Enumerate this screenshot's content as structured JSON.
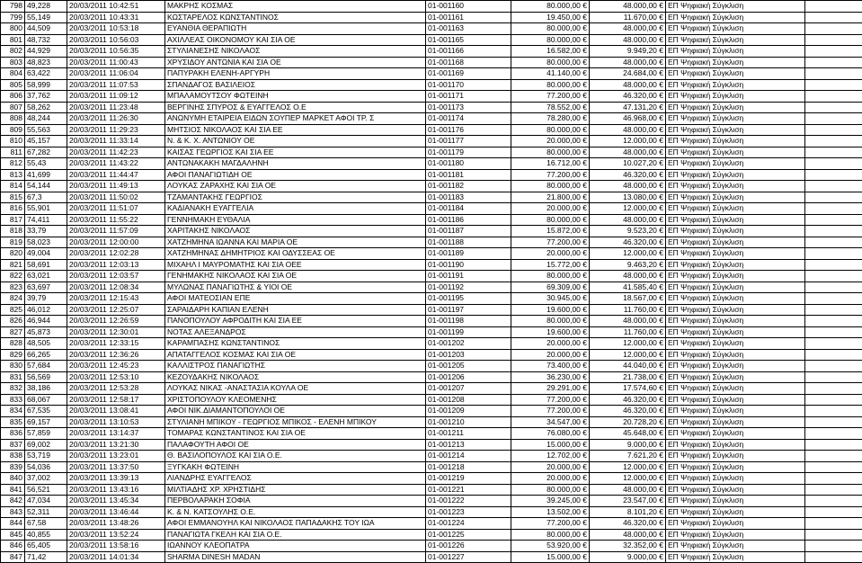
{
  "table": {
    "columns": [
      "idx",
      "num",
      "date",
      "name",
      "code",
      "amt1",
      "amt2",
      "cat",
      "extra"
    ],
    "col_classes": [
      "col-idx",
      "col-num",
      "col-date",
      "col-name",
      "col-code",
      "col-amt1",
      "col-amt2",
      "col-cat",
      "col-extra"
    ],
    "rows": [
      [
        "798",
        "49,228",
        "20/03/2011 10:42:51",
        "ΜΑΚΡΗΣ ΚΟΣΜΑΣ",
        "01-001160",
        "80.000,00 €",
        "48.000,00 €",
        "ΕΠ Ψηφιακή Σύγκλιση",
        ""
      ],
      [
        "799",
        "55,149",
        "20/03/2011 10:43:31",
        "ΚΩΣΤΑΡΕΛΟΣ ΚΩΝΣΤΑΝΤΙΝΟΣ",
        "01-001161",
        "19.450,00 €",
        "11.670,00 €",
        "ΕΠ Ψηφιακή Σύγκλιση",
        ""
      ],
      [
        "800",
        "44,509",
        "20/03/2011 10:53:18",
        "ΕΥΑΝΘΙΑ ΘΕΡΑΠΙΩΤΗ",
        "01-001163",
        "80.000,00 €",
        "48.000,00 €",
        "ΕΠ Ψηφιακή Σύγκλιση",
        ""
      ],
      [
        "801",
        "48,732",
        "20/03/2011 10:56:03",
        "ΑΧΙΛΛΕΑΣ ΟΙΚΟΝΟΜΟΥ ΚΑΙ ΣΙΑ ΟΕ",
        "01-001165",
        "80.000,00 €",
        "48.000,00 €",
        "ΕΠ Ψηφιακή Σύγκλιση",
        ""
      ],
      [
        "802",
        "44,929",
        "20/03/2011 10:56:35",
        "ΣΤΥΛΙΑΝΕΣΗΣ ΝΙΚΟΛΑΟΣ",
        "01-001166",
        "16.582,00 €",
        "9.949,20 €",
        "ΕΠ Ψηφιακή Σύγκλιση",
        ""
      ],
      [
        "803",
        "48,823",
        "20/03/2011 11:00:43",
        "ΧΡΥΣΙΔΟΥ ΑΝΤΩΝΙΑ ΚΑΙ ΣΙΑ ΟΕ",
        "01-001168",
        "80.000,00 €",
        "48.000,00 €",
        "ΕΠ Ψηφιακή Σύγκλιση",
        ""
      ],
      [
        "804",
        "63,422",
        "20/03/2011 11:06:04",
        "ΠΑΠΥΡΑΚΗ ΕΛΕΝΗ-ΑΡΓΥΡΗ",
        "01-001169",
        "41.140,00 €",
        "24.684,00 €",
        "ΕΠ Ψηφιακή Σύγκλιση",
        ""
      ],
      [
        "805",
        "58,999",
        "20/03/2011 11:07:53",
        "ΣΠΑΝΔΑΓΟΣ ΒΑΣΙΛΕΙΟΣ",
        "01-001170",
        "80.000,00 €",
        "48.000,00 €",
        "ΕΠ Ψηφιακή Σύγκλιση",
        ""
      ],
      [
        "806",
        "37,762",
        "20/03/2011 11:09:12",
        "ΜΠΑΛΑΜΟΥΤΣΟΥ ΦΩΤΕΙΝΗ",
        "01-001171",
        "77.200,00 €",
        "46.320,00 €",
        "ΕΠ Ψηφιακή Σύγκλιση",
        ""
      ],
      [
        "807",
        "58,262",
        "20/03/2011 11:23:48",
        "ΒΕΡΓΙΝΗΣ ΣΠΥΡΟΣ & ΕΥΑΓΓΕΛΟΣ Ο.Ε",
        "01-001173",
        "78.552,00 €",
        "47.131,20 €",
        "ΕΠ Ψηφιακή Σύγκλιση",
        ""
      ],
      [
        "808",
        "48,244",
        "20/03/2011 11:26:30",
        "ΑΝΩΝΥΜΗ ΕΤΑΙΡΕΙΑ ΕΙΔΩΝ ΣΟΥΠΕΡ ΜΑΡΚΕΤ ΑΦΟΙ ΤΡ. Σ",
        "01-001174",
        "78.280,00 €",
        "46.968,00 €",
        "ΕΠ Ψηφιακή Σύγκλιση",
        ""
      ],
      [
        "809",
        "55,563",
        "20/03/2011 11:29:23",
        "ΜΗΤΣΙΟΣ ΝΙΚΟΛΑΟΣ ΚΑΙ ΣΙΑ ΕΕ",
        "01-001176",
        "80.000,00 €",
        "48.000,00 €",
        "ΕΠ Ψηφιακή Σύγκλιση",
        ""
      ],
      [
        "810",
        "45,157",
        "20/03/2011 11:33:14",
        "Ν. & Κ. Χ. ΑΝΤΩΝΙΟΥ ΟΕ",
        "01-001177",
        "20.000,00 €",
        "12.000,00 €",
        "ΕΠ Ψηφιακή Σύγκλιση",
        ""
      ],
      [
        "811",
        "67,282",
        "20/03/2011 11:42:23",
        "ΚΑΙΣΑΣ ΓΕΩΡΓΙΟΣ ΚΑΙ ΣΙΑ ΕΕ",
        "01-001179",
        "80.000,00 €",
        "48.000,00 €",
        "ΕΠ Ψηφιακή Σύγκλιση",
        ""
      ],
      [
        "812",
        "55,43",
        "20/03/2011 11:43:22",
        "ΑΝΤΩΝΑΚΑΚΗ ΜΑΓΔΑΛΗΝΗ",
        "01-001180",
        "16.712,00 €",
        "10.027,20 €",
        "ΕΠ Ψηφιακή Σύγκλιση",
        ""
      ],
      [
        "813",
        "41,699",
        "20/03/2011 11:44:47",
        "ΑΦΟΙ ΠΑΝΑΓΙΩΤΙΔΗ ΟΕ",
        "01-001181",
        "77.200,00 €",
        "46.320,00 €",
        "ΕΠ Ψηφιακή Σύγκλιση",
        ""
      ],
      [
        "814",
        "54,144",
        "20/03/2011 11:49:13",
        "ΛΟΥΚΑΣ ΖΑΡΑΧΗΣ ΚΑΙ ΣΙΑ ΟΕ",
        "01-001182",
        "80.000,00 €",
        "48.000,00 €",
        "ΕΠ Ψηφιακή Σύγκλιση",
        ""
      ],
      [
        "815",
        "67,3",
        "20/03/2011 11:50:02",
        "ΤΖΑΜΑΝΤΑΚΗΣ ΓΕΩΡΓΙΟΣ",
        "01-001183",
        "21.800,00 €",
        "13.080,00 €",
        "ΕΠ Ψηφιακή Σύγκλιση",
        ""
      ],
      [
        "816",
        "55,901",
        "20/03/2011 11:51:07",
        "ΚΑΔΙΑΝΑΚΗ ΕΥΑΓΓΕΛΙΑ",
        "01-001184",
        "20.000,00 €",
        "12.000,00 €",
        "ΕΠ Ψηφιακή Σύγκλιση",
        ""
      ],
      [
        "817",
        "74,411",
        "20/03/2011 11:55:22",
        "ΓΕΝΝΗΜΑΚΗ ΕΥΘΑΛΙΑ",
        "01-001186",
        "80.000,00 €",
        "48.000,00 €",
        "ΕΠ Ψηφιακή Σύγκλιση",
        ""
      ],
      [
        "818",
        "33,79",
        "20/03/2011 11:57:09",
        "ΧΑΡΙΤΑΚΗΣ ΝΙΚΟΛΑΟΣ",
        "01-001187",
        "15.872,00 €",
        "9.523,20 €",
        "ΕΠ Ψηφιακή Σύγκλιση",
        ""
      ],
      [
        "819",
        "58,023",
        "20/03/2011 12:00:00",
        "ΧΑΤΖΗΜΗΝΑ ΙΩΑΝΝΑ ΚΑΙ ΜΑΡΙΑ ΟΕ",
        "01-001188",
        "77.200,00 €",
        "46.320,00 €",
        "ΕΠ Ψηφιακή Σύγκλιση",
        ""
      ],
      [
        "820",
        "49,004",
        "20/03/2011 12:02:28",
        "ΧΑΤΖΗΜΗΝΑΣ ΔΗΜΗΤΡΙΟΣ ΚΑΙ ΟΔΥΣΣΕΑΣ  ΟΕ",
        "01-001189",
        "20.000,00 €",
        "12.000,00 €",
        "ΕΠ Ψηφιακή Σύγκλιση",
        ""
      ],
      [
        "821",
        "58,691",
        "20/03/2011 12:03:13",
        "ΜΙΧΑΗΛ Ι ΜΑΥΡΟΜΑΤΗΣ ΚΑΙ ΣΙΑ ΟΕΕ",
        "01-001190",
        "15.772,00 €",
        "9.463,20 €",
        "ΕΠ Ψηφιακή Σύγκλιση",
        ""
      ],
      [
        "822",
        "63,021",
        "20/03/2011 12:03:57",
        "ΓΕΝΗΜΑΚΗΣ ΝΙΚΟΛΑΟΣ ΚΑΙ ΣΙΑ ΟΕ",
        "01-001191",
        "80.000,00 €",
        "48.000,00 €",
        "ΕΠ Ψηφιακή Σύγκλιση",
        ""
      ],
      [
        "823",
        "63,697",
        "20/03/2011 12:08:34",
        "ΜΥΛΩΝΑΣ ΠΑΝΑΓΙΩΤΗΣ & ΥΙΟΙ ΟΕ",
        "01-001192",
        "69.309,00 €",
        "41.585,40 €",
        "ΕΠ Ψηφιακή Σύγκλιση",
        ""
      ],
      [
        "824",
        "39,79",
        "20/03/2011 12:15:43",
        "ΑΦΟΙ ΜΑΤΕΟΣΙΑΝ ΕΠΕ",
        "01-001195",
        "30.945,00 €",
        "18.567,00 €",
        "ΕΠ Ψηφιακή Σύγκλιση",
        ""
      ],
      [
        "825",
        "46,012",
        "20/03/2011 12:25:07",
        "ΣΑΡΑΙΔΑΡΗ  ΚΑΠΙΑΝ ΕΛΕΝΗ",
        "01-001197",
        "19.600,00 €",
        "11.760,00 €",
        "ΕΠ Ψηφιακή Σύγκλιση",
        ""
      ],
      [
        "826",
        "46,944",
        "20/03/2011 12:26:59",
        "ΠΑΝΟΠΟΥΛΟΥ ΑΦΡΟΔΙΤΗ ΚΑΙ ΣΙΑ ΕΕ",
        "01-001198",
        "80.000,00 €",
        "48.000,00 €",
        "ΕΠ Ψηφιακή Σύγκλιση",
        ""
      ],
      [
        "827",
        "45,873",
        "20/03/2011 12:30:01",
        "ΝΟΤΑΣ ΑΛΕΞΑΝΔΡΟΣ",
        "01-001199",
        "19.600,00 €",
        "11.760,00 €",
        "ΕΠ Ψηφιακή Σύγκλιση",
        ""
      ],
      [
        "828",
        "48,505",
        "20/03/2011 12:33:15",
        "ΚΑΡΑΜΠΑΣΗΣ ΚΩΝΣΤΑΝΤΙΝΟΣ",
        "01-001202",
        "20.000,00 €",
        "12.000,00 €",
        "ΕΠ Ψηφιακή Σύγκλιση",
        ""
      ],
      [
        "829",
        "66,265",
        "20/03/2011 12:36:26",
        "ΑΠΑΤΑΓΓΕΛΟΣ ΚΟΣΜΑΣ ΚΑΙ ΣΙΑ ΟΕ",
        "01-001203",
        "20.000,00 €",
        "12.000,00 €",
        "ΕΠ Ψηφιακή Σύγκλιση",
        ""
      ],
      [
        "830",
        "57,684",
        "20/03/2011 12:45:23",
        "ΚΑΛΛΙΣΤΡΟΣ ΠΑΝΑΓΙΩΤΗΣ",
        "01-001205",
        "73.400,00 €",
        "44.040,00 €",
        "ΕΠ Ψηφιακή Σύγκλιση",
        ""
      ],
      [
        "831",
        "56,569",
        "20/03/2011 12:53:10",
        "ΚΕΖΟΥΔΑΚΗΣ ΝΙΚΟΛΑΟΣ",
        "01-001206",
        "36.230,00 €",
        "21.738,00 €",
        "ΕΠ Ψηφιακή Σύγκλιση",
        ""
      ],
      [
        "832",
        "38,186",
        "20/03/2011 12:53:28",
        "ΛΟΥΚΑΣ ΝΙΚΑΣ -ΑΝΑΣΤΑΣΙΑ ΚΟΥΛΑ ΟΕ",
        "01-001207",
        "29.291,00 €",
        "17.574,60 €",
        "ΕΠ Ψηφιακή Σύγκλιση",
        ""
      ],
      [
        "833",
        "68,067",
        "20/03/2011 12:58:17",
        "ΧΡΙΣΤΟΠΟΥΛΟΥ ΚΛΕΟΜΕΝΗΣ",
        "01-001208",
        "77.200,00 €",
        "46.320,00 €",
        "ΕΠ Ψηφιακή Σύγκλιση",
        ""
      ],
      [
        "834",
        "67,535",
        "20/03/2011 13:08:41",
        "ΑΦΟΙ ΝΙΚ.ΔΙΑΜΑΝΤΟΠΟΥΛΟΙ ΟΕ",
        "01-001209",
        "77.200,00 €",
        "46.320,00 €",
        "ΕΠ Ψηφιακή Σύγκλιση",
        ""
      ],
      [
        "835",
        "69,157",
        "20/03/2011 13:10:53",
        "ΣΤΥΛΙΑΝΗ ΜΠΙΚΟΥ - ΓΕΩΡΓΙΟΣ ΜΠΙΚΟΣ - ΕΛΕΝΗ ΜΠΙΚΟΥ",
        "01-001210",
        "34.547,00 €",
        "20.728,20 €",
        "ΕΠ Ψηφιακή Σύγκλιση",
        ""
      ],
      [
        "836",
        "57,859",
        "20/03/2011 13:14:37",
        "ΤΟΜΑΡΑΣ ΚΩΝΣΤΑΝΤΙΝΟΣ ΚΑΙ ΣΙΑ ΟΕ",
        "01-001211",
        "76.080,00 €",
        "45.648,00 €",
        "ΕΠ Ψηφιακή Σύγκλιση",
        ""
      ],
      [
        "837",
        "69,002",
        "20/03/2011 13:21:30",
        "ΠΑΛΑΦΟΥΤΗ ΑΦΟΙ ΟΕ",
        "01-001213",
        "15.000,00 €",
        "9.000,00 €",
        "ΕΠ Ψηφιακή Σύγκλιση",
        ""
      ],
      [
        "838",
        "53,719",
        "20/03/2011 13:23:01",
        "Θ. ΒΑΣΙΛΟΠΟΥΛΟΣ ΚΑΙ ΣΙΑ Ο.Ε.",
        "01-001214",
        "12.702,00 €",
        "7.621,20 €",
        "ΕΠ Ψηφιακή Σύγκλιση",
        ""
      ],
      [
        "839",
        "54,036",
        "20/03/2011 13:37:50",
        "ΞΥΓΚΑΚΗ ΦΩΤΕΙΝΗ",
        "01-001218",
        "20.000,00 €",
        "12.000,00 €",
        "ΕΠ Ψηφιακή Σύγκλιση",
        ""
      ],
      [
        "840",
        "37,002",
        "20/03/2011 13:39:13",
        "ΛΙΑΝΔΡΗΣ ΕΥΑΓΓΕΛΟΣ",
        "01-001219",
        "20.000,00 €",
        "12.000,00 €",
        "ΕΠ Ψηφιακή Σύγκλιση",
        ""
      ],
      [
        "841",
        "56,521",
        "20/03/2011 13:43:16",
        "ΜΙΛΤΙΑΔΗΣ ΧΡ. ΧΡΗΣΤΙΔΗΣ",
        "01-001221",
        "80.000,00 €",
        "48.000,00 €",
        "ΕΠ Ψηφιακή Σύγκλιση",
        ""
      ],
      [
        "842",
        "47,034",
        "20/03/2011 13:45:34",
        "ΠΕΡΒΟΛΑΡΑΚΗ ΣΟΦΙΑ",
        "01-001222",
        "39.245,00 €",
        "23.547,00 €",
        "ΕΠ Ψηφιακή Σύγκλιση",
        ""
      ],
      [
        "843",
        "52,311",
        "20/03/2011 13:46:44",
        "Κ. & Ν. ΚΑΤΣΟΥΛΗΣ Ο.Ε.",
        "01-001223",
        "13.502,00 €",
        "8.101,20 €",
        "ΕΠ Ψηφιακή Σύγκλιση",
        ""
      ],
      [
        "844",
        "67,58",
        "20/03/2011 13:48:26",
        "ΑΦΟΙ ΕΜΜΑΝΟΥΗΛ ΚΑΙ ΝΙΚΟΛΑΟΣ ΠΑΠΑΔΑΚΗΣ ΤΟΥ ΙΩΑ",
        "01-001224",
        "77.200,00 €",
        "46.320,00 €",
        "ΕΠ Ψηφιακή Σύγκλιση",
        ""
      ],
      [
        "845",
        "40,855",
        "20/03/2011 13:52:24",
        "ΠΑΝΑΓΙΩΤΑ ΓΚΕΛΗ ΚΑΙ ΣΙΑ Ο.Ε.",
        "01-001225",
        "80.000,00 €",
        "48.000,00 €",
        "ΕΠ Ψηφιακή Σύγκλιση",
        ""
      ],
      [
        "846",
        "65,405",
        "20/03/2011 13:58:16",
        "ΙΩΑΝΝΟΥ ΚΛΕΟΠΑΤΡΑ",
        "01-001226",
        "53.920,00 €",
        "32.352,00 €",
        "ΕΠ Ψηφιακή Σύγκλιση",
        ""
      ],
      [
        "847",
        "71,42",
        "20/03/2011 14:01:34",
        "SHARMA DINESH MADAN",
        "01-001227",
        "15.000,00 €",
        "9.000,00 €",
        "ΕΠ Ψηφιακή Σύγκλιση",
        ""
      ]
    ]
  }
}
